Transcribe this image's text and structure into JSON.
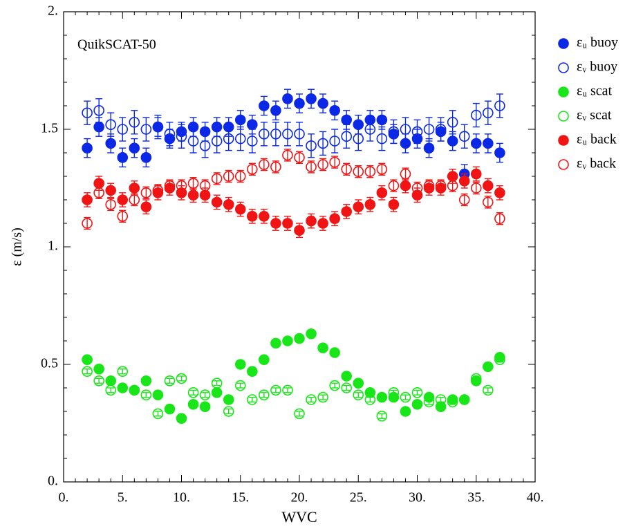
{
  "chart_data": {
    "type": "scatter",
    "annotation": "QuikSCAT-50",
    "x_label": "WVC",
    "y_label": "ε (m/s)",
    "x": [
      2,
      3,
      4,
      5,
      6,
      7,
      8,
      9,
      10,
      11,
      12,
      13,
      14,
      15,
      16,
      17,
      18,
      19,
      20,
      21,
      22,
      23,
      24,
      25,
      26,
      27,
      28,
      29,
      30,
      31,
      32,
      33,
      34,
      35,
      36,
      37
    ],
    "xlim": [
      0,
      40
    ],
    "xticks": [
      {
        "value": 0,
        "label": "0."
      },
      {
        "value": 5,
        "label": "5."
      },
      {
        "value": 10,
        "label": "10."
      },
      {
        "value": 15,
        "label": "15."
      },
      {
        "value": 20,
        "label": "20."
      },
      {
        "value": 25,
        "label": "25."
      },
      {
        "value": 30,
        "label": "30."
      },
      {
        "value": 35,
        "label": "35."
      },
      {
        "value": 40,
        "label": "40."
      }
    ],
    "ylim": [
      0,
      2
    ],
    "yticks": [
      {
        "value": 0,
        "label": "0."
      },
      0.5,
      {
        "value": 1,
        "label": "1."
      },
      1.5,
      {
        "value": 2,
        "label": "2."
      }
    ],
    "legend": "outside-right",
    "series": [
      {
        "name": "εᵤ buoy",
        "color": "#0a28e6",
        "marker": "filled",
        "error": 0.04,
        "values": [
          1.42,
          1.51,
          1.44,
          1.38,
          1.42,
          1.38,
          1.51,
          1.46,
          1.49,
          1.51,
          1.49,
          1.51,
          1.51,
          1.54,
          1.52,
          1.6,
          1.58,
          1.63,
          1.61,
          1.63,
          1.61,
          1.58,
          1.54,
          1.52,
          1.54,
          1.54,
          1.48,
          1.44,
          1.46,
          1.42,
          1.49,
          1.45,
          1.31,
          1.44,
          1.44,
          1.4
        ]
      },
      {
        "name": "εᵥ buoy",
        "color": "#0a28e6",
        "marker": "open",
        "error": 0.05,
        "values": [
          1.57,
          1.58,
          1.52,
          1.5,
          1.53,
          1.5,
          1.51,
          1.48,
          1.47,
          1.45,
          1.43,
          1.45,
          1.46,
          1.46,
          1.45,
          1.48,
          1.48,
          1.48,
          1.48,
          1.43,
          1.44,
          1.45,
          1.47,
          1.46,
          1.5,
          1.46,
          1.49,
          1.5,
          1.49,
          1.5,
          1.5,
          1.53,
          1.47,
          1.56,
          1.57,
          1.6
        ]
      },
      {
        "name": "εᵤ scat",
        "color": "#19e619",
        "marker": "filled",
        "error": 0.005,
        "values": [
          0.52,
          0.48,
          0.43,
          0.4,
          0.39,
          0.43,
          0.37,
          0.31,
          0.27,
          0.33,
          0.32,
          0.38,
          0.35,
          0.5,
          0.47,
          0.52,
          0.59,
          0.6,
          0.61,
          0.63,
          0.57,
          0.55,
          0.45,
          0.42,
          0.38,
          0.36,
          0.36,
          0.3,
          0.33,
          0.36,
          0.32,
          0.35,
          0.35,
          0.43,
          0.49,
          0.53
        ]
      },
      {
        "name": "εᵥ scat",
        "color": "#19e619",
        "marker": "open",
        "error": 0.01,
        "values": [
          0.47,
          0.43,
          0.39,
          0.47,
          0.39,
          0.37,
          0.29,
          0.43,
          0.44,
          0.38,
          0.37,
          0.42,
          0.3,
          0.41,
          0.35,
          0.37,
          0.39,
          0.39,
          0.29,
          0.35,
          0.36,
          0.41,
          0.4,
          0.37,
          0.35,
          0.28,
          0.38,
          0.36,
          0.38,
          0.34,
          0.35,
          0.34,
          0.35,
          0.44,
          0.39,
          0.52
        ]
      },
      {
        "name": "εᵤ back",
        "color": "#f01414",
        "marker": "filled",
        "error": 0.03,
        "values": [
          1.2,
          1.27,
          1.24,
          1.2,
          1.25,
          1.17,
          1.23,
          1.25,
          1.23,
          1.22,
          1.22,
          1.19,
          1.18,
          1.16,
          1.13,
          1.13,
          1.1,
          1.1,
          1.07,
          1.11,
          1.1,
          1.12,
          1.15,
          1.17,
          1.18,
          1.23,
          1.18,
          1.26,
          1.22,
          1.25,
          1.25,
          1.3,
          1.28,
          1.31,
          1.26,
          1.23
        ]
      },
      {
        "name": "εᵥ back",
        "color": "#f01414",
        "marker": "open",
        "error": 0.025,
        "values": [
          1.1,
          1.23,
          1.18,
          1.13,
          1.2,
          1.23,
          1.24,
          1.26,
          1.26,
          1.27,
          1.26,
          1.29,
          1.3,
          1.3,
          1.33,
          1.35,
          1.34,
          1.39,
          1.38,
          1.34,
          1.35,
          1.36,
          1.33,
          1.32,
          1.32,
          1.33,
          1.26,
          1.31,
          1.25,
          1.26,
          1.26,
          1.26,
          1.2,
          1.25,
          1.19,
          1.12
        ]
      }
    ]
  }
}
